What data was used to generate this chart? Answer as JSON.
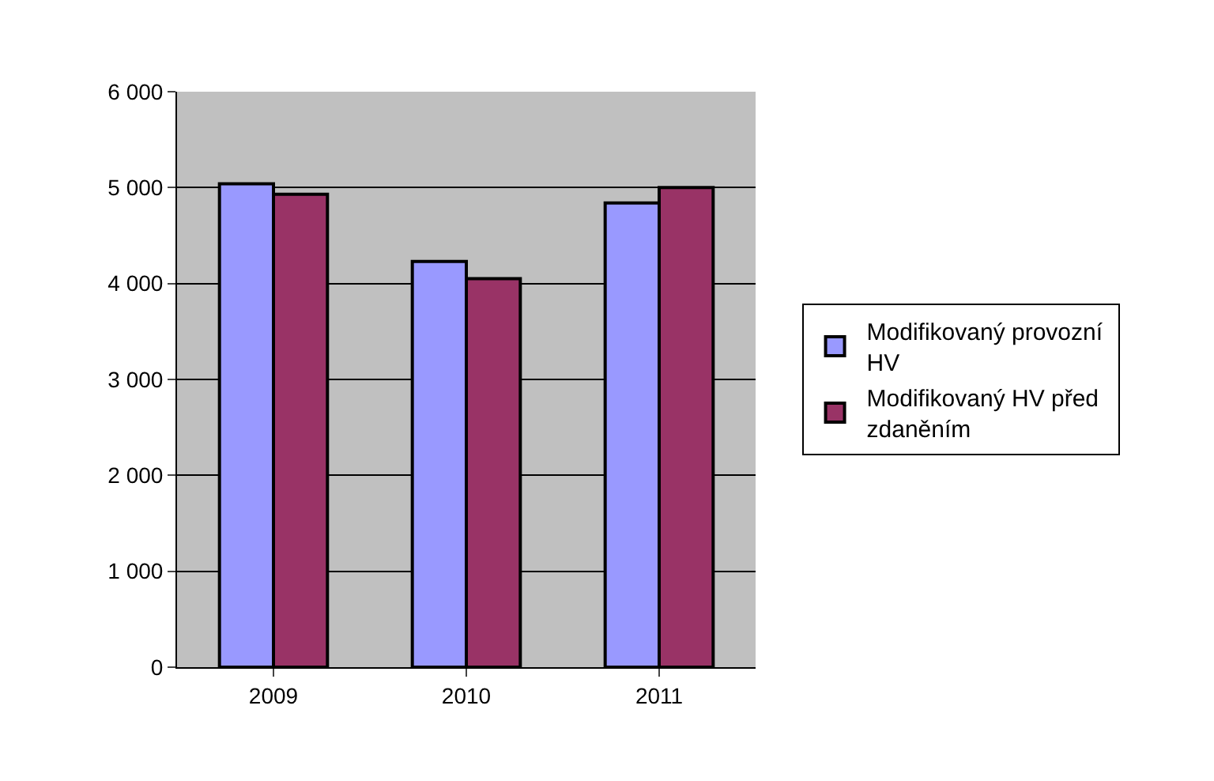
{
  "chart_data": {
    "type": "bar",
    "categories": [
      "2009",
      "2010",
      "2011"
    ],
    "series": [
      {
        "name": "Modifikovaný provozní  HV",
        "color": "#9999ff",
        "values": [
          5040,
          4230,
          4840
        ]
      },
      {
        "name": "Modifikovaný HV před zdaněním",
        "color": "#993366",
        "values": [
          4930,
          4050,
          5000
        ]
      }
    ],
    "ylim": [
      0,
      6000
    ],
    "yticks": [
      {
        "value": 0,
        "label": "0"
      },
      {
        "value": 1000,
        "label": "1 000"
      },
      {
        "value": 2000,
        "label": "2 000"
      },
      {
        "value": 3000,
        "label": "3 000"
      },
      {
        "value": 4000,
        "label": "4 000"
      },
      {
        "value": 5000,
        "label": "5 000"
      },
      {
        "value": 6000,
        "label": "6 000"
      }
    ],
    "grid": "y",
    "legend": "right"
  }
}
